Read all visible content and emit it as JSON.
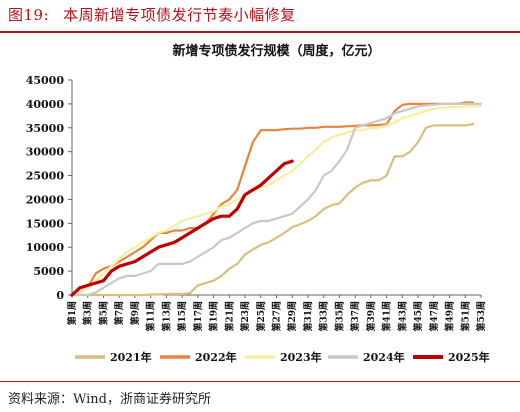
{
  "figure": {
    "number": "图19:",
    "caption": "本周新增专项债发行节奏小幅修复",
    "source": "资料来源：Wind，浙商证券研究所"
  },
  "chart_data": {
    "type": "line",
    "title": "新增专项债发行规模（周度，亿元）",
    "xlabel": "",
    "ylabel": "",
    "ylim": [
      0,
      45000
    ],
    "yticks": [
      0,
      5000,
      10000,
      15000,
      20000,
      25000,
      30000,
      35000,
      40000,
      45000
    ],
    "xticks": [
      "第1周",
      "第3周",
      "第5周",
      "第7周",
      "第9周",
      "第11周",
      "第13周",
      "第15周",
      "第17周",
      "第19周",
      "第21周",
      "第23周",
      "第25周",
      "第27周",
      "第29周",
      "第31周",
      "第33周",
      "第35周",
      "第37周",
      "第39周",
      "第41周",
      "第43周",
      "第45周",
      "第47周",
      "第49周",
      "第51周",
      "第53周"
    ],
    "x": [
      1,
      2,
      3,
      4,
      5,
      6,
      7,
      8,
      9,
      10,
      11,
      12,
      13,
      14,
      15,
      16,
      17,
      18,
      19,
      20,
      21,
      22,
      23,
      24,
      25,
      26,
      27,
      28,
      29,
      30,
      31,
      32,
      33,
      34,
      35,
      36,
      37,
      38,
      39,
      40,
      41,
      42,
      43,
      44,
      45,
      46,
      47,
      48,
      49,
      50,
      51,
      52,
      53
    ],
    "grid": false,
    "legend_position": "bottom",
    "series": [
      {
        "name": "2021年",
        "color": "#d8c07c",
        "values": [
          0,
          0,
          0,
          0,
          0,
          0,
          0,
          0,
          0,
          0,
          100,
          100,
          200,
          200,
          200,
          400,
          2000,
          2500,
          3000,
          4000,
          5500,
          6500,
          8500,
          9500,
          10500,
          11000,
          12000,
          13000,
          14200,
          14800,
          15500,
          16500,
          18000,
          18800,
          19200,
          21000,
          22500,
          23500,
          24000,
          24000,
          25000,
          29000,
          29000,
          30000,
          32000,
          35000,
          35500,
          35500,
          35500,
          35500,
          35500,
          35800,
          null
        ]
      },
      {
        "name": "2022年",
        "color": "#e8843f",
        "values": [
          0,
          500,
          1500,
          4500,
          5500,
          6000,
          7000,
          8000,
          9000,
          10000,
          11500,
          13000,
          13000,
          13500,
          13500,
          14000,
          14000,
          15000,
          17000,
          19000,
          20000,
          22000,
          27000,
          32000,
          34500,
          34500,
          34500,
          34700,
          34800,
          34800,
          35000,
          35000,
          35200,
          35200,
          35200,
          35300,
          35400,
          35500,
          35500,
          35600,
          35700,
          38500,
          39800,
          40000,
          40000,
          40000,
          40000,
          40000,
          40000,
          40000,
          40300,
          40300,
          null
        ]
      },
      {
        "name": "2023年",
        "color": "#f8ee9e",
        "values": [
          0,
          500,
          1500,
          3000,
          4500,
          6000,
          7500,
          9000,
          10000,
          11000,
          12000,
          13000,
          13500,
          14500,
          15500,
          16000,
          16500,
          17000,
          17500,
          18500,
          19000,
          20000,
          21000,
          22000,
          22500,
          23000,
          24000,
          25000,
          26000,
          27500,
          29000,
          30500,
          32000,
          33000,
          33500,
          34000,
          34500,
          34500,
          35000,
          35000,
          35500,
          36000,
          37000,
          37500,
          38000,
          38500,
          39000,
          39200,
          39300,
          39400,
          39500,
          39500,
          39500
        ]
      },
      {
        "name": "2024年",
        "color": "#c8c8c8",
        "values": [
          0,
          0,
          0,
          500,
          1500,
          2500,
          3500,
          4000,
          4000,
          4500,
          5000,
          6500,
          6500,
          6500,
          6500,
          7000,
          8000,
          9000,
          10000,
          11500,
          12000,
          13000,
          14000,
          15000,
          15500,
          15500,
          16000,
          16500,
          17000,
          18500,
          20000,
          22000,
          25000,
          26000,
          28000,
          30500,
          35000,
          35500,
          36000,
          36500,
          37000,
          38000,
          38500,
          39000,
          39500,
          39700,
          39800,
          40000,
          40000,
          40000,
          40000,
          40000,
          40000
        ]
      },
      {
        "name": "2025年",
        "color": "#c00000",
        "values": [
          0,
          1500,
          2000,
          2500,
          3000,
          5000,
          6000,
          6500,
          7000,
          8000,
          9000,
          10000,
          10500,
          11000,
          12000,
          13000,
          14000,
          15000,
          16000,
          16500,
          16500,
          18000,
          21000,
          22000,
          23000,
          24500,
          26000,
          27500,
          28000,
          null,
          null,
          null,
          null,
          null,
          null,
          null,
          null,
          null,
          null,
          null,
          null,
          null,
          null,
          null,
          null,
          null,
          null,
          null,
          null,
          null,
          null,
          null,
          null
        ]
      }
    ]
  }
}
